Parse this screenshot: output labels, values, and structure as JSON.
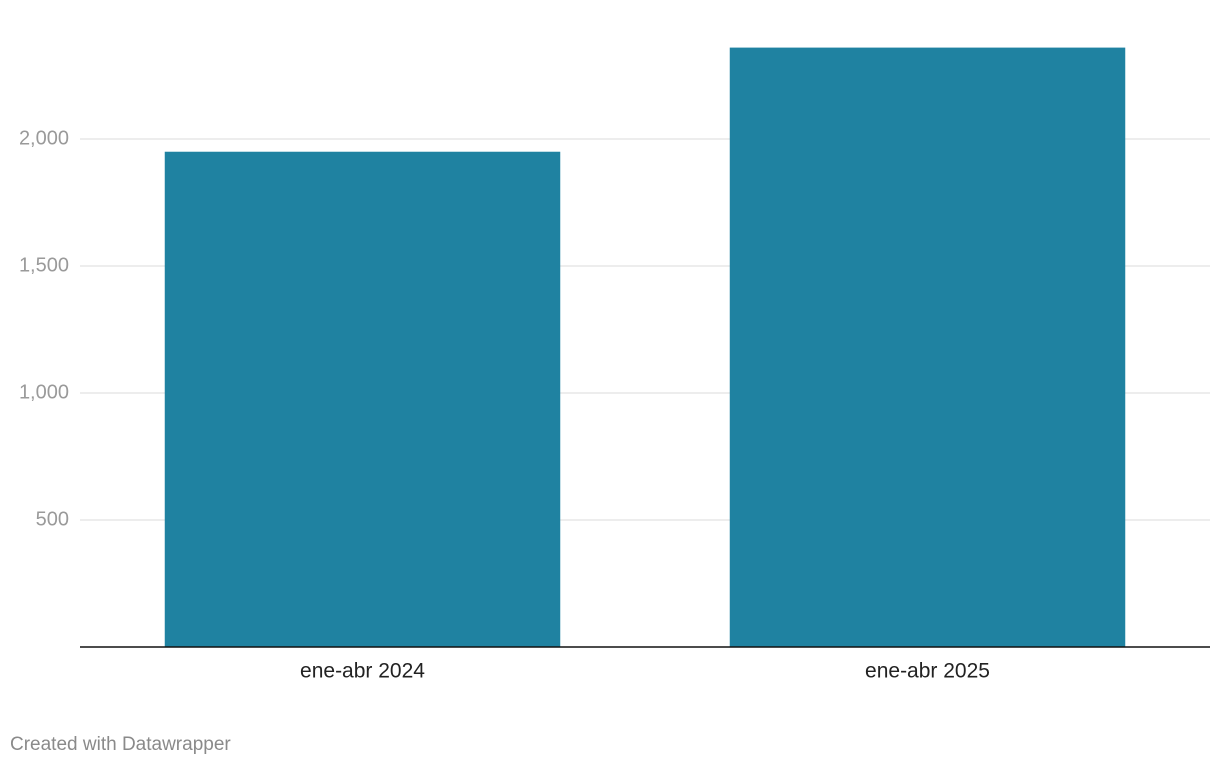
{
  "chart_data": {
    "type": "bar",
    "categories": [
      "ene-abr 2024",
      "ene-abr 2025"
    ],
    "values": [
      1950,
      2360
    ],
    "color": "#1f82a1",
    "ylim": [
      0,
      2360
    ],
    "yticks": [
      500,
      {
        "value": 1000,
        "label": "1,000"
      },
      {
        "value": 1500,
        "label": "1,500"
      },
      {
        "value": 2000,
        "label": "2,000"
      }
    ],
    "grid": true,
    "footer": "Created with Datawrapper"
  }
}
